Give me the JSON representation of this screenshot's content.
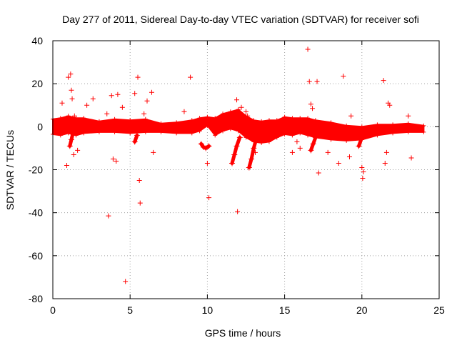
{
  "chart_data": {
    "type": "scatter",
    "title": "Day 277 of 2011, Sidereal Day-to-day VTEC variation (SDTVAR) for receiver sofi",
    "xlabel": "GPS time / hours",
    "ylabel": "SDTVAR / TECUs",
    "xlim": [
      0,
      25
    ],
    "ylim": [
      -80,
      40
    ],
    "xticks": [
      0,
      5,
      10,
      15,
      20,
      25
    ],
    "yticks": [
      -80,
      -60,
      -40,
      -20,
      0,
      20,
      40
    ],
    "grid": true,
    "marker": "+",
    "color": "#ff0000",
    "band": [
      [
        0.0,
        0,
        3.5
      ],
      [
        0.5,
        0,
        4
      ],
      [
        1.0,
        1,
        4
      ],
      [
        1.5,
        0,
        4
      ],
      [
        2.0,
        0.5,
        3.5
      ],
      [
        3.0,
        0,
        2.5
      ],
      [
        4.0,
        0.5,
        3
      ],
      [
        5.0,
        0,
        3
      ],
      [
        6.0,
        0.5,
        3
      ],
      [
        7.0,
        -0.5,
        2
      ],
      [
        8.0,
        -0.5,
        2.5
      ],
      [
        9.0,
        0,
        3
      ],
      [
        9.5,
        1,
        3
      ],
      [
        10.0,
        2.5,
        2
      ],
      [
        10.5,
        0,
        4
      ],
      [
        11.0,
        2,
        4
      ],
      [
        11.5,
        3,
        4
      ],
      [
        12.0,
        3,
        5
      ],
      [
        12.5,
        0,
        5
      ],
      [
        13.0,
        -2,
        5
      ],
      [
        13.5,
        -2.5,
        5
      ],
      [
        14.0,
        -2,
        5
      ],
      [
        14.5,
        -1,
        4
      ],
      [
        15.0,
        0.5,
        4
      ],
      [
        15.5,
        0,
        4
      ],
      [
        16.0,
        0.5,
        3.5
      ],
      [
        16.5,
        0,
        4
      ],
      [
        17.0,
        -1,
        4
      ],
      [
        18.0,
        -2,
        4
      ],
      [
        19.0,
        -3,
        3.5
      ],
      [
        20.0,
        -3,
        3
      ],
      [
        21.0,
        -1.5,
        2.5
      ],
      [
        22.0,
        -1,
        2
      ],
      [
        23.0,
        -0.5,
        2
      ],
      [
        24.0,
        -1,
        1.5
      ]
    ],
    "streaks": [
      [
        [
          9.6,
          -8
        ],
        [
          9.75,
          -9.5
        ],
        [
          9.9,
          -10
        ],
        [
          10.1,
          -9
        ]
      ],
      [
        [
          11.6,
          -17
        ],
        [
          11.75,
          -13
        ],
        [
          11.9,
          -9
        ],
        [
          12.1,
          -5
        ]
      ],
      [
        [
          12.7,
          -19
        ],
        [
          12.85,
          -15
        ],
        [
          13.0,
          -10
        ],
        [
          13.15,
          -6
        ]
      ],
      [
        [
          16.7,
          -11
        ],
        [
          16.85,
          -8
        ],
        [
          17.0,
          -5
        ]
      ],
      [
        [
          1.1,
          -9
        ],
        [
          1.2,
          -6
        ],
        [
          1.3,
          -3
        ]
      ],
      [
        [
          5.3,
          -7
        ],
        [
          5.45,
          -4
        ]
      ],
      [
        [
          19.8,
          -9
        ],
        [
          19.95,
          -6
        ],
        [
          20.1,
          -3
        ]
      ]
    ],
    "outliers": [
      [
        0.6,
        11
      ],
      [
        0.9,
        -18
      ],
      [
        1.0,
        23
      ],
      [
        1.15,
        24.5
      ],
      [
        1.2,
        17
      ],
      [
        1.25,
        13
      ],
      [
        1.35,
        -13
      ],
      [
        1.4,
        5
      ],
      [
        1.6,
        -11
      ],
      [
        2.2,
        10
      ],
      [
        2.6,
        13
      ],
      [
        3.5,
        6
      ],
      [
        3.6,
        -41.5
      ],
      [
        3.8,
        14.5
      ],
      [
        3.9,
        -15
      ],
      [
        4.1,
        -16
      ],
      [
        4.2,
        15
      ],
      [
        4.5,
        9
      ],
      [
        4.7,
        -72
      ],
      [
        5.3,
        15.5
      ],
      [
        5.5,
        23
      ],
      [
        5.6,
        -25
      ],
      [
        5.65,
        -35.5
      ],
      [
        5.9,
        6
      ],
      [
        6.1,
        12
      ],
      [
        6.4,
        16
      ],
      [
        6.5,
        -12
      ],
      [
        8.5,
        7
      ],
      [
        8.9,
        23
      ],
      [
        10.0,
        -17
      ],
      [
        10.1,
        -33
      ],
      [
        11.9,
        12.5
      ],
      [
        11.95,
        -39.5
      ],
      [
        12.2,
        9
      ],
      [
        12.5,
        7
      ],
      [
        12.6,
        5
      ],
      [
        13.1,
        -12
      ],
      [
        15.5,
        -12
      ],
      [
        15.8,
        -7
      ],
      [
        16.0,
        -10
      ],
      [
        16.5,
        36
      ],
      [
        16.6,
        21
      ],
      [
        16.7,
        10.5
      ],
      [
        16.8,
        8.5
      ],
      [
        17.1,
        21
      ],
      [
        17.2,
        -21.5
      ],
      [
        17.8,
        -12
      ],
      [
        18.5,
        -17
      ],
      [
        18.8,
        23.5
      ],
      [
        19.2,
        -14
      ],
      [
        19.3,
        5
      ],
      [
        20.0,
        -19
      ],
      [
        20.05,
        -24
      ],
      [
        20.1,
        -21
      ],
      [
        21.4,
        21.5
      ],
      [
        21.5,
        -17
      ],
      [
        21.6,
        -12
      ],
      [
        21.7,
        11
      ],
      [
        21.8,
        10
      ],
      [
        23.0,
        5
      ],
      [
        23.2,
        -14.5
      ]
    ]
  }
}
